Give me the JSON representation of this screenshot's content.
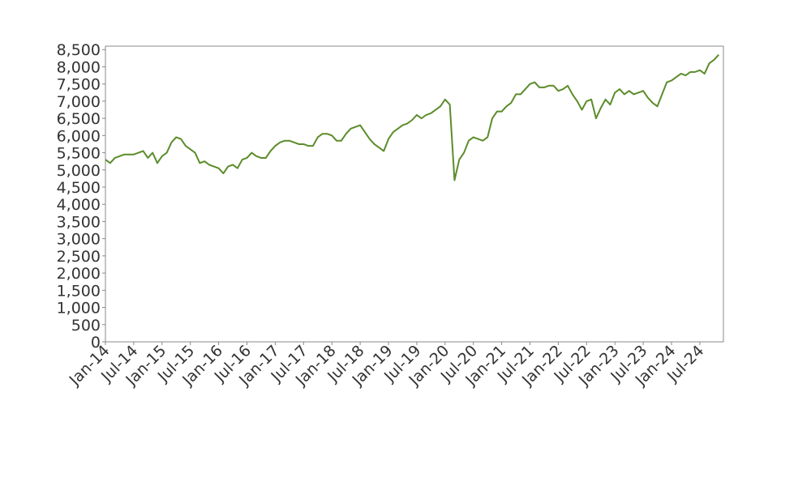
{
  "chart_data": {
    "type": "line",
    "x": [
      "2014-01",
      "2014-02",
      "2014-03",
      "2014-04",
      "2014-05",
      "2014-06",
      "2014-07",
      "2014-08",
      "2014-09",
      "2014-10",
      "2014-11",
      "2014-12",
      "2015-01",
      "2015-02",
      "2015-03",
      "2015-04",
      "2015-05",
      "2015-06",
      "2015-07",
      "2015-08",
      "2015-09",
      "2015-10",
      "2015-11",
      "2015-12",
      "2016-01",
      "2016-02",
      "2016-03",
      "2016-04",
      "2016-05",
      "2016-06",
      "2016-07",
      "2016-08",
      "2016-09",
      "2016-10",
      "2016-11",
      "2016-12",
      "2017-01",
      "2017-02",
      "2017-03",
      "2017-04",
      "2017-05",
      "2017-06",
      "2017-07",
      "2017-08",
      "2017-09",
      "2017-10",
      "2017-11",
      "2017-12",
      "2018-01",
      "2018-02",
      "2018-03",
      "2018-04",
      "2018-05",
      "2018-06",
      "2018-07",
      "2018-08",
      "2018-09",
      "2018-10",
      "2018-11",
      "2018-12",
      "2019-01",
      "2019-02",
      "2019-03",
      "2019-04",
      "2019-05",
      "2019-06",
      "2019-07",
      "2019-08",
      "2019-09",
      "2019-10",
      "2019-11",
      "2019-12",
      "2020-01",
      "2020-02",
      "2020-03",
      "2020-04",
      "2020-05",
      "2020-06",
      "2020-07",
      "2020-08",
      "2020-09",
      "2020-10",
      "2020-11",
      "2020-12",
      "2021-01",
      "2021-02",
      "2021-03",
      "2021-04",
      "2021-05",
      "2021-06",
      "2021-07",
      "2021-08",
      "2021-09",
      "2021-10",
      "2021-11",
      "2021-12",
      "2022-01",
      "2022-02",
      "2022-03",
      "2022-04",
      "2022-05",
      "2022-06",
      "2022-07",
      "2022-08",
      "2022-09",
      "2022-10",
      "2022-11",
      "2022-12",
      "2023-01",
      "2023-02",
      "2023-03",
      "2023-04",
      "2023-05",
      "2023-06",
      "2023-07",
      "2023-08",
      "2023-09",
      "2023-10",
      "2023-11",
      "2023-12",
      "2024-01",
      "2024-02",
      "2024-03",
      "2024-04",
      "2024-05",
      "2024-06",
      "2024-07",
      "2024-08",
      "2024-09",
      "2024-10",
      "2024-11"
    ],
    "series": [
      {
        "color": "#5b8c2a",
        "values": [
          5300,
          5200,
          5350,
          5400,
          5450,
          5450,
          5450,
          5500,
          5550,
          5350,
          5500,
          5200,
          5400,
          5500,
          5800,
          5950,
          5900,
          5700,
          5600,
          5500,
          5200,
          5250,
          5150,
          5100,
          5050,
          4900,
          5100,
          5150,
          5050,
          5300,
          5350,
          5500,
          5400,
          5350,
          5350,
          5550,
          5700,
          5800,
          5850,
          5850,
          5800,
          5750,
          5750,
          5700,
          5700,
          5950,
          6050,
          6050,
          6000,
          5850,
          5850,
          6050,
          6200,
          6250,
          6300,
          6100,
          5900,
          5750,
          5650,
          5550,
          5900,
          6100,
          6200,
          6300,
          6350,
          6450,
          6600,
          6500,
          6600,
          6650,
          6750,
          6850,
          7050,
          6900,
          4700,
          5300,
          5500,
          5850,
          5950,
          5900,
          5850,
          5950,
          6500,
          6700,
          6700,
          6850,
          6950,
          7200,
          7200,
          7350,
          7500,
          7550,
          7400,
          7400,
          7450,
          7450,
          7300,
          7350,
          7450,
          7200,
          7000,
          6750,
          7000,
          7050,
          6500,
          6800,
          7050,
          6900,
          7250,
          7350,
          7200,
          7300,
          7200,
          7250,
          7300,
          7100,
          6950,
          6850,
          7200,
          7550,
          7600,
          7700,
          7800,
          7750,
          7850,
          7850,
          7900,
          7800,
          8100,
          8200,
          8350
        ]
      }
    ],
    "xlim": [
      "2014-01",
      "2024-12"
    ],
    "xticks": [
      {
        "value": "2014-01",
        "label": "Jan-14"
      },
      {
        "value": "2014-07",
        "label": "Jul-14"
      },
      {
        "value": "2015-01",
        "label": "Jan-15"
      },
      {
        "value": "2015-07",
        "label": "Jul-15"
      },
      {
        "value": "2016-01",
        "label": "Jan-16"
      },
      {
        "value": "2016-07",
        "label": "Jul-16"
      },
      {
        "value": "2017-01",
        "label": "Jan-17"
      },
      {
        "value": "2017-07",
        "label": "Jul-17"
      },
      {
        "value": "2018-01",
        "label": "Jan-18"
      },
      {
        "value": "2018-07",
        "label": "Jul-18"
      },
      {
        "value": "2019-01",
        "label": "Jan-19"
      },
      {
        "value": "2019-07",
        "label": "Jul-19"
      },
      {
        "value": "2020-01",
        "label": "Jan-20"
      },
      {
        "value": "2020-07",
        "label": "Jul-20"
      },
      {
        "value": "2021-01",
        "label": "Jan-21"
      },
      {
        "value": "2021-07",
        "label": "Jul-21"
      },
      {
        "value": "2022-01",
        "label": "Jan-22"
      },
      {
        "value": "2022-07",
        "label": "Jul-22"
      },
      {
        "value": "2023-01",
        "label": "Jan-23"
      },
      {
        "value": "2023-07",
        "label": "Jul-23"
      },
      {
        "value": "2024-01",
        "label": "Jan-24"
      },
      {
        "value": "2024-07",
        "label": "Jul-24"
      }
    ],
    "ylim": [
      0,
      8600
    ],
    "yticks": [
      0,
      500,
      {
        "value": 1000,
        "label": "1,000"
      },
      {
        "value": 1500,
        "label": "1,500"
      },
      {
        "value": 2000,
        "label": "2,000"
      },
      {
        "value": 2500,
        "label": "2,500"
      },
      {
        "value": 3000,
        "label": "3,000"
      },
      {
        "value": 3500,
        "label": "3,500"
      },
      {
        "value": 4000,
        "label": "4,000"
      },
      {
        "value": 4500,
        "label": "4,500"
      },
      {
        "value": 5000,
        "label": "5,000"
      },
      {
        "value": 5500,
        "label": "5,500"
      },
      {
        "value": 6000,
        "label": "6,000"
      },
      {
        "value": 6500,
        "label": "6,500"
      },
      {
        "value": 7000,
        "label": "7,000"
      },
      {
        "value": 7500,
        "label": "7,500"
      },
      {
        "value": 8000,
        "label": "8,000"
      },
      {
        "value": 8500,
        "label": "8,500"
      }
    ],
    "grid": false
  }
}
